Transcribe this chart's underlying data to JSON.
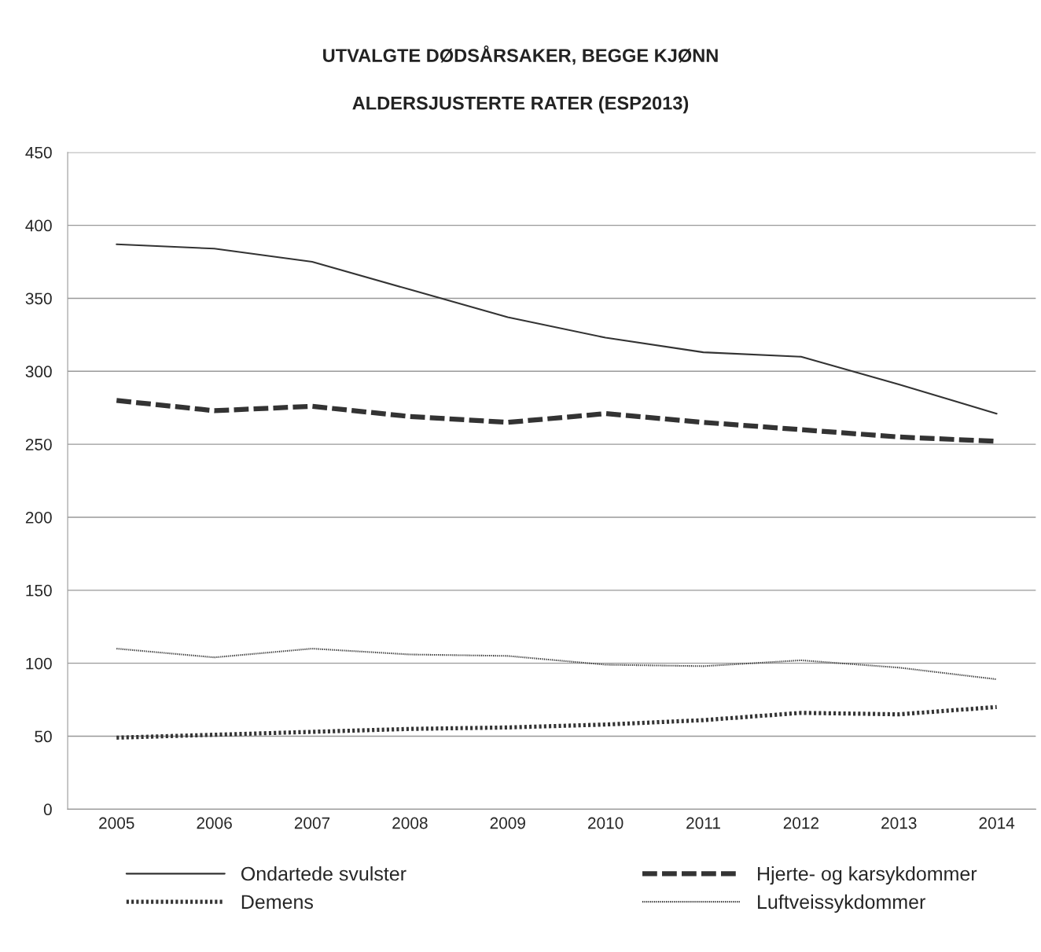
{
  "chart_data": {
    "type": "line",
    "title": "UTVALGTE DØDSÅRSAKER, BEGGE KJØNN",
    "subtitle": "ALDERSJUSTERTE RATER (ESP2013)",
    "x": [
      2005,
      2006,
      2007,
      2008,
      2009,
      2010,
      2011,
      2012,
      2013,
      2014
    ],
    "xlim": [
      2004.5,
      2014.4
    ],
    "xticks": [
      2005,
      2006,
      2007,
      2008,
      2009,
      2010,
      2011,
      2012,
      2013,
      2014
    ],
    "ylim": [
      0,
      450
    ],
    "yticks": [
      0,
      50,
      100,
      150,
      200,
      250,
      300,
      350,
      400,
      450
    ],
    "grid": "y",
    "legend": "bottom",
    "series": [
      {
        "name": "Ondartede svulster",
        "color": "#333333",
        "line_style": "solid",
        "values": [
          387,
          384,
          375,
          356,
          337,
          323,
          313,
          310,
          291,
          271
        ]
      },
      {
        "name": "Demens",
        "color": "#333333",
        "line_style": "dotted",
        "values": [
          49,
          51,
          53,
          55,
          56,
          58,
          61,
          66,
          65,
          70
        ]
      },
      {
        "name": "Hjerte- og karsykdommer",
        "color": "#333333",
        "line_style": "dashed",
        "values": [
          280,
          273,
          276,
          269,
          265,
          271,
          265,
          260,
          255,
          252
        ]
      },
      {
        "name": "Luftveissykdommer",
        "color": "#333333",
        "line_style": "dotted",
        "values": [
          110,
          104,
          110,
          106,
          105,
          99,
          98,
          102,
          97,
          89
        ]
      }
    ]
  }
}
